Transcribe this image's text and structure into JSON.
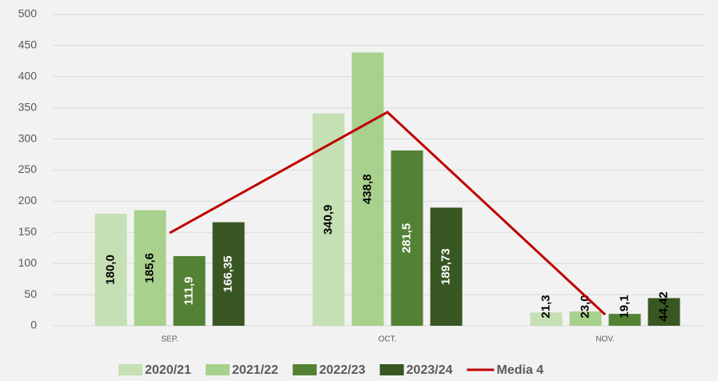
{
  "chart_data": {
    "type": "bar",
    "categories": [
      "SEP.",
      "OCT.",
      "NOV."
    ],
    "series": [
      {
        "name": "2020/21",
        "color": "#c5e0b4",
        "values": [
          180.0,
          340.9,
          21.3
        ],
        "value_labels": [
          "180,0",
          "340,9",
          "21,3"
        ]
      },
      {
        "name": "2021/22",
        "color": "#a9d18e",
        "values": [
          185.6,
          438.8,
          23.0
        ],
        "value_labels": [
          "185,6",
          "438,8",
          "23,0"
        ]
      },
      {
        "name": "2022/23",
        "color": "#548235",
        "values": [
          111.9,
          281.5,
          19.1
        ],
        "value_labels": [
          "111,9",
          "281,5",
          "19,1"
        ]
      },
      {
        "name": "2023/24",
        "color": "#385723",
        "values": [
          166.35,
          189.73,
          44.42
        ],
        "value_labels": [
          "166,35",
          "189,73",
          "44,42"
        ]
      },
      {
        "name": "Media 4",
        "type": "line",
        "color": "#c00000",
        "values": [
          149,
          343,
          18
        ]
      }
    ],
    "ylim": [
      0,
      500
    ],
    "yticks": [
      0,
      50,
      100,
      150,
      200,
      250,
      300,
      350,
      400,
      450,
      500
    ],
    "grid": true,
    "legend": "bottom"
  }
}
